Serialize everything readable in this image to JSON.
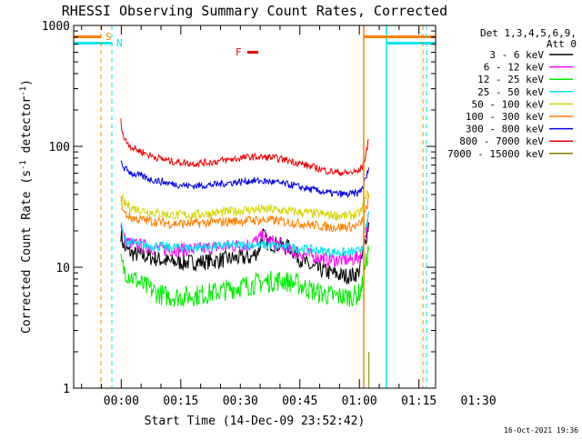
{
  "chart_data": {
    "type": "line",
    "title": "RHESSI Observing Summary Count Rates, Corrected",
    "xlabel": "Start Time (14-Dec-09 23:52:42)",
    "ylabel": "Corrected Count Rate (s⁻¹ detector⁻¹)",
    "ylabel_main": "Corrected Count Rate (s",
    "ylabel_sup1": "-1",
    "ylabel_mid": " detector",
    "ylabel_sup2": "-1",
    "ylabel_end": ")",
    "yscale": "log",
    "ylim": [
      1,
      1000
    ],
    "xlim_minutes": [
      -4.7,
      86.5
    ],
    "x_unit": "minutes after 23:52:42",
    "x_ticks": [
      {
        "label": "00:00",
        "minutes": 7.3
      },
      {
        "label": "00:15",
        "minutes": 22.3
      },
      {
        "label": "00:30",
        "minutes": 37.3
      },
      {
        "label": "00:45",
        "minutes": 52.3
      },
      {
        "label": "01:00",
        "minutes": 67.3
      },
      {
        "label": "01:15",
        "minutes": 82.3
      },
      {
        "label": "01:30",
        "minutes": 97.3
      }
    ],
    "y_ticks": [
      {
        "label": "1",
        "value": 1
      },
      {
        "label": "10",
        "value": 10
      },
      {
        "label": "100",
        "value": 100
      },
      {
        "label": "1000",
        "value": 1000
      }
    ],
    "legend_position": "top-right",
    "legend_header": [
      "Det 1,3,4,5,6,9,",
      "Att 0"
    ],
    "series": [
      {
        "name": "3 - 6 keV",
        "color": "#000000",
        "points": [
          [
            7.2,
            19
          ],
          [
            8,
            14.5
          ],
          [
            10,
            13
          ],
          [
            15,
            12
          ],
          [
            20,
            11
          ],
          [
            25,
            11
          ],
          [
            30,
            11.2
          ],
          [
            35,
            11.8
          ],
          [
            40,
            12
          ],
          [
            42,
            14
          ],
          [
            43,
            19
          ],
          [
            44,
            16
          ],
          [
            46,
            15.5
          ],
          [
            50,
            14.5
          ],
          [
            52,
            12
          ],
          [
            55,
            10
          ],
          [
            60,
            9
          ],
          [
            63,
            8.5
          ],
          [
            65,
            8.5
          ],
          [
            67,
            9
          ],
          [
            68,
            12
          ],
          [
            69,
            18
          ],
          [
            69.8,
            24
          ]
        ]
      },
      {
        "name": "6 - 12 keV",
        "color": "#ff00ff",
        "points": [
          [
            7.2,
            24
          ],
          [
            8,
            17
          ],
          [
            10,
            15.5
          ],
          [
            15,
            14.5
          ],
          [
            20,
            14
          ],
          [
            25,
            14
          ],
          [
            30,
            14.5
          ],
          [
            35,
            15
          ],
          [
            40,
            15.5
          ],
          [
            43,
            18
          ],
          [
            44,
            17
          ],
          [
            46,
            16
          ],
          [
            48,
            15
          ],
          [
            50,
            13.5
          ],
          [
            55,
            12.5
          ],
          [
            60,
            11.5
          ],
          [
            65,
            11.5
          ],
          [
            67,
            12
          ],
          [
            68,
            14
          ],
          [
            69,
            20
          ],
          [
            69.8,
            28
          ]
        ]
      },
      {
        "name": "12 - 25 keV",
        "color": "#00ee00",
        "points": [
          [
            7.2,
            11
          ],
          [
            8,
            9.5
          ],
          [
            10,
            8.3
          ],
          [
            13,
            7
          ],
          [
            15,
            6.5
          ],
          [
            18,
            5.8
          ],
          [
            22,
            5.7
          ],
          [
            27,
            5.9
          ],
          [
            32,
            6.3
          ],
          [
            36,
            6.8
          ],
          [
            40,
            7.2
          ],
          [
            44,
            7.6
          ],
          [
            48,
            7.8
          ],
          [
            52,
            7.2
          ],
          [
            56,
            6.3
          ],
          [
            60,
            5.8
          ],
          [
            64,
            5.7
          ],
          [
            67,
            5.9
          ],
          [
            68,
            7
          ],
          [
            69,
            11
          ],
          [
            69.8,
            15
          ]
        ]
      },
      {
        "name": "25 - 50 keV",
        "color": "#00e5ee",
        "points": [
          [
            7.2,
            23
          ],
          [
            8,
            17
          ],
          [
            10,
            15.8
          ],
          [
            15,
            15
          ],
          [
            20,
            14.6
          ],
          [
            25,
            14.5
          ],
          [
            30,
            14.8
          ],
          [
            35,
            15.2
          ],
          [
            40,
            15.4
          ],
          [
            45,
            15.2
          ],
          [
            50,
            14.6
          ],
          [
            55,
            14
          ],
          [
            60,
            13.4
          ],
          [
            64,
            13.2
          ],
          [
            67,
            13.5
          ],
          [
            68,
            15
          ],
          [
            69,
            21
          ],
          [
            69.8,
            29
          ]
        ]
      },
      {
        "name": "50 - 100 keV",
        "color": "#d4d400",
        "points": [
          [
            7.2,
            38
          ],
          [
            8,
            34
          ],
          [
            10,
            31
          ],
          [
            15,
            28.5
          ],
          [
            20,
            27
          ],
          [
            25,
            27
          ],
          [
            30,
            28
          ],
          [
            35,
            29
          ],
          [
            40,
            30
          ],
          [
            45,
            30
          ],
          [
            50,
            29
          ],
          [
            55,
            28
          ],
          [
            60,
            27
          ],
          [
            64,
            26.5
          ],
          [
            67,
            27.5
          ],
          [
            68,
            30
          ],
          [
            69,
            38
          ],
          [
            69.8,
            45
          ]
        ]
      },
      {
        "name": "100 - 300 keV",
        "color": "#ff8000",
        "points": [
          [
            7.2,
            36
          ],
          [
            8,
            28
          ],
          [
            10,
            25.5
          ],
          [
            15,
            24
          ],
          [
            20,
            23
          ],
          [
            25,
            23
          ],
          [
            30,
            23.5
          ],
          [
            35,
            24
          ],
          [
            40,
            24.5
          ],
          [
            45,
            24.5
          ],
          [
            50,
            23.5
          ],
          [
            55,
            22.5
          ],
          [
            60,
            21.5
          ],
          [
            64,
            21.5
          ],
          [
            67,
            22
          ],
          [
            68,
            24
          ],
          [
            69,
            30
          ],
          [
            69.8,
            38
          ]
        ]
      },
      {
        "name": "300 - 800 keV",
        "color": "#0000e0",
        "points": [
          [
            7.2,
            75
          ],
          [
            8,
            66
          ],
          [
            10,
            60
          ],
          [
            15,
            53
          ],
          [
            20,
            49
          ],
          [
            25,
            47
          ],
          [
            30,
            48
          ],
          [
            35,
            50
          ],
          [
            40,
            52
          ],
          [
            45,
            51
          ],
          [
            50,
            48
          ],
          [
            55,
            44
          ],
          [
            60,
            41
          ],
          [
            64,
            40
          ],
          [
            67,
            41
          ],
          [
            68,
            45
          ],
          [
            69,
            55
          ],
          [
            69.8,
            68
          ]
        ]
      },
      {
        "name": "800 - 7000 keV",
        "color": "#ee0000",
        "points": [
          [
            7.2,
            160
          ],
          [
            8,
            115
          ],
          [
            10,
            98
          ],
          [
            15,
            83
          ],
          [
            20,
            75
          ],
          [
            25,
            72
          ],
          [
            30,
            74
          ],
          [
            35,
            78
          ],
          [
            40,
            82
          ],
          [
            45,
            81
          ],
          [
            50,
            76
          ],
          [
            55,
            68
          ],
          [
            60,
            62
          ],
          [
            64,
            60
          ],
          [
            67,
            62
          ],
          [
            68,
            68
          ],
          [
            69,
            85
          ],
          [
            69.8,
            130
          ]
        ]
      },
      {
        "name": "7000 - 15000 keV",
        "color": "#808000",
        "points": [
          [
            69.7,
            1
          ],
          [
            69.7,
            2
          ]
        ]
      }
    ],
    "markers": [
      {
        "label": "S",
        "color": "#ff8000"
      },
      {
        "label": "N",
        "color": "#00e5ee"
      },
      {
        "label": "F",
        "color": "#ee0000"
      }
    ],
    "timestamp": "16-Oct-2021 19:36"
  }
}
